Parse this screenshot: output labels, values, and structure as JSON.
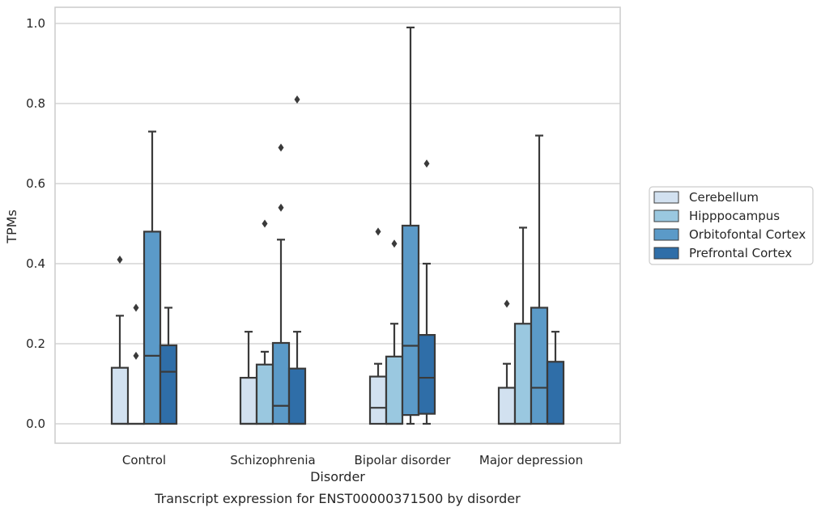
{
  "chart_data": {
    "type": "box",
    "title": "Transcript expression for ENST00000371500 by disorder",
    "xlabel": "Disorder",
    "ylabel": "TPMs",
    "ylim": [
      -0.05,
      1.04
    ],
    "yticks": [
      0.0,
      0.2,
      0.4,
      0.6,
      0.8,
      1.0
    ],
    "ytick_labels": [
      "0.0",
      "0.2",
      "0.4",
      "0.6",
      "0.8",
      "1.0"
    ],
    "grid": "horizontal",
    "legend_position": "right-center",
    "categories": [
      "Control",
      "Schizophrenia",
      "Bipolar disorder",
      "Major depression"
    ],
    "series": [
      {
        "name": "Cerebellum",
        "color": "#d2e1f0",
        "boxes": [
          {
            "min": 0.0,
            "q1": 0.0,
            "median": 0.0,
            "q3": 0.14,
            "max": 0.27,
            "outliers": [
              0.41
            ]
          },
          {
            "min": 0.0,
            "q1": 0.0,
            "median": 0.0,
            "q3": 0.115,
            "max": 0.23,
            "outliers": []
          },
          {
            "min": 0.0,
            "q1": 0.0,
            "median": 0.04,
            "q3": 0.118,
            "max": 0.15,
            "outliers": [
              0.48
            ]
          },
          {
            "min": 0.0,
            "q1": 0.0,
            "median": 0.0,
            "q3": 0.09,
            "max": 0.15,
            "outliers": [
              0.3
            ]
          }
        ]
      },
      {
        "name": "Hipppocampus",
        "color": "#9ac8e0",
        "boxes": [
          {
            "min": 0.0,
            "q1": 0.0,
            "median": 0.0,
            "q3": 0.0,
            "max": 0.0,
            "outliers": [
              0.17,
              0.29
            ]
          },
          {
            "min": 0.0,
            "q1": 0.0,
            "median": 0.0,
            "q3": 0.148,
            "max": 0.18,
            "outliers": [
              0.5
            ]
          },
          {
            "min": 0.0,
            "q1": 0.0,
            "median": 0.0,
            "q3": 0.168,
            "max": 0.25,
            "outliers": [
              0.45
            ]
          },
          {
            "min": 0.0,
            "q1": 0.0,
            "median": 0.0,
            "q3": 0.25,
            "max": 0.49,
            "outliers": []
          }
        ]
      },
      {
        "name": "Orbitofontal Cortex",
        "color": "#5b9ac8",
        "boxes": [
          {
            "min": 0.0,
            "q1": 0.0,
            "median": 0.17,
            "q3": 0.48,
            "max": 0.73,
            "outliers": []
          },
          {
            "min": 0.0,
            "q1": 0.0,
            "median": 0.045,
            "q3": 0.202,
            "max": 0.46,
            "outliers": [
              0.54,
              0.69
            ]
          },
          {
            "min": 0.0,
            "q1": 0.022,
            "median": 0.195,
            "q3": 0.495,
            "max": 0.99,
            "outliers": []
          },
          {
            "min": 0.0,
            "q1": 0.0,
            "median": 0.09,
            "q3": 0.29,
            "max": 0.72,
            "outliers": []
          }
        ]
      },
      {
        "name": "Prefrontal Cortex",
        "color": "#2f6ea8",
        "boxes": [
          {
            "min": 0.0,
            "q1": 0.0,
            "median": 0.13,
            "q3": 0.196,
            "max": 0.29,
            "outliers": []
          },
          {
            "min": 0.0,
            "q1": 0.0,
            "median": 0.0,
            "q3": 0.138,
            "max": 0.23,
            "outliers": [
              0.81
            ]
          },
          {
            "min": 0.0,
            "q1": 0.025,
            "median": 0.115,
            "q3": 0.222,
            "max": 0.4,
            "outliers": [
              0.65
            ]
          },
          {
            "min": 0.0,
            "q1": 0.0,
            "median": 0.0,
            "q3": 0.155,
            "max": 0.23,
            "outliers": []
          }
        ]
      }
    ]
  }
}
